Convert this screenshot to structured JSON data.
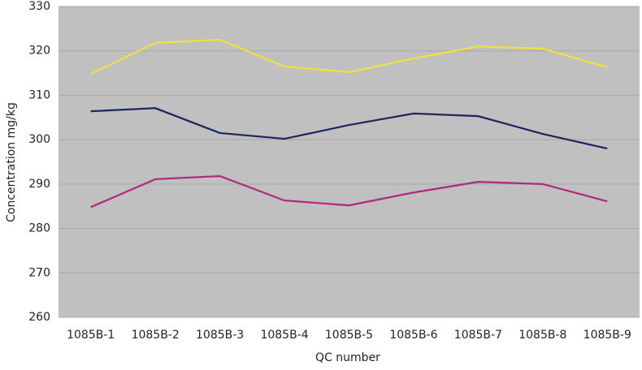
{
  "chart_data": {
    "type": "line",
    "x_label": "QC number",
    "y_label": "Concentration mg/kg",
    "categories": [
      "1085B-1",
      "1085B-2",
      "1085B-3",
      "1085B-4",
      "1085B-5",
      "1085B-6",
      "1085B-7",
      "1085B-8",
      "1085B-9"
    ],
    "series": [
      {
        "color": "#f0e040",
        "values": [
          314.8,
          321.8,
          322.5,
          316.5,
          315.2,
          318.3,
          321.0,
          320.5,
          316.3
        ]
      },
      {
        "color": "#1c2560",
        "values": [
          306.4,
          307.1,
          301.5,
          300.2,
          303.3,
          305.9,
          305.3,
          301.3,
          298.0
        ]
      },
      {
        "color": "#b0287e",
        "values": [
          284.8,
          291.1,
          291.8,
          286.3,
          285.2,
          288.1,
          290.5,
          290.0,
          286.1
        ]
      }
    ],
    "ylim": [
      260,
      330
    ],
    "yticks": [
      260,
      270,
      280,
      290,
      300,
      310,
      320,
      330
    ],
    "grid": true,
    "background": "#c0c0c0"
  }
}
